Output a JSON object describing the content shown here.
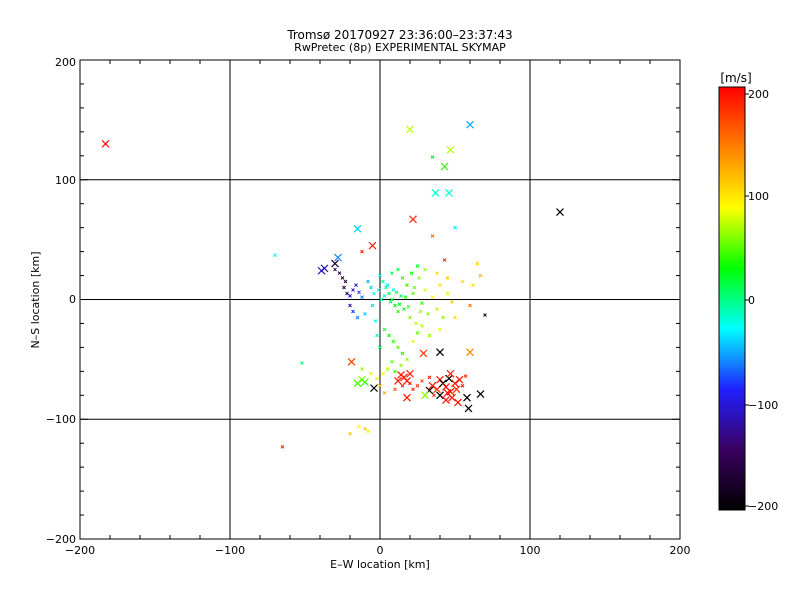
{
  "chart_data": {
    "type": "scatter",
    "title": "Tromsø 20170927 23:36:00–23:37:43",
    "subtitle": "RwPretec (8p) EXPERIMENTAL SKYMAP",
    "xlabel": "E–W location [km]",
    "ylabel": "N–S location [km]",
    "xlim": [
      -200,
      200
    ],
    "ylim": [
      -200,
      200
    ],
    "xticks": [
      "−200",
      "−100",
      "0",
      "100",
      "200"
    ],
    "yticks": [
      "−200",
      "−100",
      "0",
      "100",
      "200"
    ],
    "grid": true,
    "colorbar": {
      "label": "[m/s]",
      "range": [
        -200,
        200
      ],
      "ticks": [
        "200",
        "100",
        "0",
        "−100",
        "−200"
      ],
      "colors": [
        "#000000",
        "#3a0060",
        "#2020ff",
        "#00ffff",
        "#00ff00",
        "#ffff00",
        "#ff8000",
        "#ff0000"
      ]
    },
    "markers_large": [
      {
        "x": -183,
        "y": 130,
        "v": 190
      },
      {
        "x": 20,
        "y": 142,
        "v": 70
      },
      {
        "x": 60,
        "y": 146,
        "v": -50
      },
      {
        "x": 47,
        "y": 125,
        "v": 70
      },
      {
        "x": 43,
        "y": 111,
        "v": 40
      },
      {
        "x": 37,
        "y": 89,
        "v": -20
      },
      {
        "x": 46,
        "y": 89,
        "v": -20
      },
      {
        "x": 120,
        "y": 73,
        "v": -200
      },
      {
        "x": 22,
        "y": 67,
        "v": 180
      },
      {
        "x": -15,
        "y": 59,
        "v": -40
      },
      {
        "x": -5,
        "y": 45,
        "v": 190
      },
      {
        "x": -28,
        "y": 35,
        "v": -60
      },
      {
        "x": -30,
        "y": 30,
        "v": -170
      },
      {
        "x": -37,
        "y": 26,
        "v": -110
      },
      {
        "x": -39,
        "y": 24,
        "v": -110
      },
      {
        "x": 60,
        "y": -44,
        "v": 140
      },
      {
        "x": 29,
        "y": -45,
        "v": 180
      },
      {
        "x": -19,
        "y": -52,
        "v": 170
      },
      {
        "x": 40,
        "y": -44,
        "v": -200
      },
      {
        "x": -15,
        "y": -70,
        "v": 40
      },
      {
        "x": -12,
        "y": -67,
        "v": 60
      },
      {
        "x": -10,
        "y": -69,
        "v": 40
      },
      {
        "x": -4,
        "y": -74,
        "v": -200
      },
      {
        "x": 14,
        "y": -63,
        "v": 190
      },
      {
        "x": 16,
        "y": -65,
        "v": 190
      },
      {
        "x": 18,
        "y": -68,
        "v": 190
      },
      {
        "x": 12,
        "y": -68,
        "v": 190
      },
      {
        "x": 20,
        "y": -62,
        "v": 190
      },
      {
        "x": 18,
        "y": -82,
        "v": 190
      },
      {
        "x": 35,
        "y": -72,
        "v": 190
      },
      {
        "x": 38,
        "y": -75,
        "v": 180
      },
      {
        "x": 40,
        "y": -67,
        "v": 190
      },
      {
        "x": 42,
        "y": -70,
        "v": -200
      },
      {
        "x": 44,
        "y": -73,
        "v": 190
      },
      {
        "x": 45,
        "y": -78,
        "v": 190
      },
      {
        "x": 46,
        "y": -66,
        "v": -200
      },
      {
        "x": 47,
        "y": -62,
        "v": 190
      },
      {
        "x": 48,
        "y": -82,
        "v": 190
      },
      {
        "x": 50,
        "y": -70,
        "v": 190
      },
      {
        "x": 51,
        "y": -75,
        "v": 180
      },
      {
        "x": 52,
        "y": -86,
        "v": 190
      },
      {
        "x": 53,
        "y": -67,
        "v": 190
      },
      {
        "x": 40,
        "y": -80,
        "v": -200
      },
      {
        "x": 33,
        "y": -76,
        "v": -200
      },
      {
        "x": 58,
        "y": -82,
        "v": -200
      },
      {
        "x": 67,
        "y": -79,
        "v": -200
      },
      {
        "x": 59,
        "y": -91,
        "v": -200
      },
      {
        "x": 44,
        "y": -84,
        "v": 190
      },
      {
        "x": 30,
        "y": -80,
        "v": 60
      },
      {
        "x": 47,
        "y": -77,
        "v": 190
      }
    ],
    "markers_small": [
      {
        "x": 35,
        "y": 119,
        "v": 20
      },
      {
        "x": 50,
        "y": 60,
        "v": -30
      },
      {
        "x": 35,
        "y": 53,
        "v": 150
      },
      {
        "x": 43,
        "y": 33,
        "v": 180
      },
      {
        "x": -70,
        "y": 37,
        "v": -30
      },
      {
        "x": -12,
        "y": 40,
        "v": 190
      },
      {
        "x": 55,
        "y": 15,
        "v": 100
      },
      {
        "x": 65,
        "y": 30,
        "v": 110
      },
      {
        "x": 67,
        "y": 20,
        "v": 120
      },
      {
        "x": 62,
        "y": 12,
        "v": 100
      },
      {
        "x": 70,
        "y": -13,
        "v": -200
      },
      {
        "x": 60,
        "y": -5,
        "v": 150
      },
      {
        "x": -52,
        "y": -53,
        "v": 0
      },
      {
        "x": -65,
        "y": -123,
        "v": 190
      },
      {
        "x": -20,
        "y": -112,
        "v": 110
      },
      {
        "x": -14,
        "y": -106,
        "v": 90
      },
      {
        "x": -10,
        "y": -108,
        "v": 110
      },
      {
        "x": -8,
        "y": -110,
        "v": 90
      },
      {
        "x": -30,
        "y": 25,
        "v": -170
      },
      {
        "x": -27,
        "y": 22,
        "v": -150
      },
      {
        "x": -25,
        "y": 18,
        "v": -180
      },
      {
        "x": -23,
        "y": 15,
        "v": -160
      },
      {
        "x": -24,
        "y": 10,
        "v": -170
      },
      {
        "x": -22,
        "y": 5,
        "v": -150
      },
      {
        "x": -20,
        "y": 3,
        "v": -100
      },
      {
        "x": -18,
        "y": 8,
        "v": -110
      },
      {
        "x": -16,
        "y": 12,
        "v": -90
      },
      {
        "x": -14,
        "y": 6,
        "v": -80
      },
      {
        "x": -12,
        "y": 2,
        "v": -60
      },
      {
        "x": -20,
        "y": -5,
        "v": -120
      },
      {
        "x": -18,
        "y": -10,
        "v": -80
      },
      {
        "x": -15,
        "y": -15,
        "v": -60
      },
      {
        "x": -10,
        "y": -12,
        "v": -40
      },
      {
        "x": -8,
        "y": 15,
        "v": -50
      },
      {
        "x": -6,
        "y": 10,
        "v": -40
      },
      {
        "x": -4,
        "y": 5,
        "v": -30
      },
      {
        "x": -5,
        "y": -5,
        "v": -40
      },
      {
        "x": -3,
        "y": -18,
        "v": -20
      },
      {
        "x": 0,
        "y": 20,
        "v": -30
      },
      {
        "x": 2,
        "y": 15,
        "v": -10
      },
      {
        "x": 4,
        "y": 10,
        "v": 0
      },
      {
        "x": 6,
        "y": 5,
        "v": 10
      },
      {
        "x": 8,
        "y": 0,
        "v": 20
      },
      {
        "x": 10,
        "y": -5,
        "v": 30
      },
      {
        "x": 12,
        "y": -10,
        "v": 40
      },
      {
        "x": 14,
        "y": 3,
        "v": 0
      },
      {
        "x": 16,
        "y": -8,
        "v": 20
      },
      {
        "x": 18,
        "y": 12,
        "v": 40
      },
      {
        "x": 20,
        "y": -15,
        "v": 60
      },
      {
        "x": 22,
        "y": 5,
        "v": 50
      },
      {
        "x": 24,
        "y": -20,
        "v": 70
      },
      {
        "x": 26,
        "y": 18,
        "v": 60
      },
      {
        "x": 28,
        "y": -3,
        "v": 40
      },
      {
        "x": 30,
        "y": 8,
        "v": 80
      },
      {
        "x": 32,
        "y": -12,
        "v": 60
      },
      {
        "x": 35,
        "y": 2,
        "v": 90
      },
      {
        "x": 38,
        "y": -8,
        "v": 70
      },
      {
        "x": 40,
        "y": 12,
        "v": 100
      },
      {
        "x": 42,
        "y": -15,
        "v": 60
      },
      {
        "x": 45,
        "y": 5,
        "v": 80
      },
      {
        "x": 48,
        "y": -2,
        "v": 110
      },
      {
        "x": 3,
        "y": -25,
        "v": 20
      },
      {
        "x": 6,
        "y": -30,
        "v": 30
      },
      {
        "x": 9,
        "y": -35,
        "v": 40
      },
      {
        "x": 12,
        "y": -40,
        "v": 50
      },
      {
        "x": 15,
        "y": -45,
        "v": 30
      },
      {
        "x": 18,
        "y": -50,
        "v": 60
      },
      {
        "x": 8,
        "y": -52,
        "v": 50
      },
      {
        "x": 5,
        "y": -58,
        "v": 70
      },
      {
        "x": 2,
        "y": -62,
        "v": 90
      },
      {
        "x": -2,
        "y": -66,
        "v": 80
      },
      {
        "x": 10,
        "y": -60,
        "v": 40
      },
      {
        "x": 14,
        "y": -55,
        "v": 60
      },
      {
        "x": 22,
        "y": -35,
        "v": 80
      },
      {
        "x": 25,
        "y": -28,
        "v": 50
      },
      {
        "x": 28,
        "y": -22,
        "v": 70
      },
      {
        "x": 0,
        "y": -40,
        "v": 10
      },
      {
        "x": -2,
        "y": -30,
        "v": -10
      },
      {
        "x": 1,
        "y": 0,
        "v": -5
      },
      {
        "x": 3,
        "y": 3,
        "v": -15
      },
      {
        "x": 7,
        "y": -2,
        "v": 5
      },
      {
        "x": 11,
        "y": 6,
        "v": 15
      },
      {
        "x": 13,
        "y": -4,
        "v": 25
      },
      {
        "x": 17,
        "y": 2,
        "v": 35
      },
      {
        "x": 19,
        "y": -6,
        "v": 45
      },
      {
        "x": 23,
        "y": 10,
        "v": 55
      },
      {
        "x": 27,
        "y": -10,
        "v": 65
      },
      {
        "x": 9,
        "y": 8,
        "v": -20
      },
      {
        "x": 5,
        "y": 12,
        "v": -35
      },
      {
        "x": -1,
        "y": 8,
        "v": -25
      },
      {
        "x": 21,
        "y": 22,
        "v": 30
      },
      {
        "x": 12,
        "y": 25,
        "v": 20
      },
      {
        "x": 30,
        "y": 25,
        "v": 60
      },
      {
        "x": 38,
        "y": 22,
        "v": 100
      },
      {
        "x": 45,
        "y": 18,
        "v": 110
      },
      {
        "x": 33,
        "y": -30,
        "v": 60
      },
      {
        "x": 40,
        "y": -25,
        "v": 80
      },
      {
        "x": 50,
        "y": -15,
        "v": 100
      },
      {
        "x": 20,
        "y": -70,
        "v": 190
      },
      {
        "x": 25,
        "y": -72,
        "v": 180
      },
      {
        "x": 22,
        "y": -75,
        "v": 190
      },
      {
        "x": 28,
        "y": -68,
        "v": 170
      },
      {
        "x": 15,
        "y": -72,
        "v": 190
      },
      {
        "x": 10,
        "y": -75,
        "v": 170
      },
      {
        "x": 33,
        "y": -65,
        "v": 190
      },
      {
        "x": 36,
        "y": -80,
        "v": 190
      },
      {
        "x": 55,
        "y": -72,
        "v": 190
      },
      {
        "x": 57,
        "y": -64,
        "v": 180
      },
      {
        "x": 3,
        "y": -78,
        "v": 120
      },
      {
        "x": 0,
        "y": -72,
        "v": 110
      },
      {
        "x": -6,
        "y": -62,
        "v": 80
      },
      {
        "x": -12,
        "y": -58,
        "v": 60
      },
      {
        "x": 15,
        "y": 18,
        "v": 40
      },
      {
        "x": 25,
        "y": 28,
        "v": 20
      },
      {
        "x": 8,
        "y": 22,
        "v": 10
      }
    ]
  }
}
